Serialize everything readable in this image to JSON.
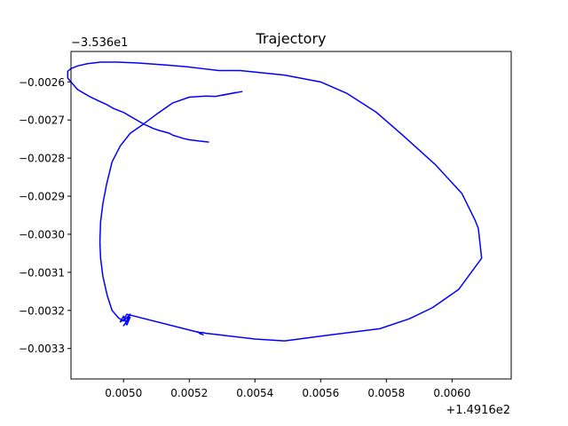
{
  "chart_data": {
    "type": "line",
    "title": "Trajectory",
    "xlabel": "",
    "ylabel": "",
    "x_offset_label": "+1.4916e2",
    "y_offset_label": "−3.536e1",
    "xlim": [
      0.00484,
      0.00618
    ],
    "ylim": [
      -0.00338,
      -0.00252
    ],
    "x_ticks": [
      0.005,
      0.0052,
      0.0054,
      0.0056,
      0.0058,
      0.006
    ],
    "x_tick_labels": [
      "0.0050",
      "0.0052",
      "0.0054",
      "0.0056",
      "0.0058",
      "0.0060"
    ],
    "y_ticks": [
      -0.0026,
      -0.0027,
      -0.0028,
      -0.0029,
      -0.003,
      -0.0031,
      -0.0032,
      -0.0033
    ],
    "y_tick_labels": [
      "−0.0026",
      "−0.0027",
      "−0.0028",
      "−0.0029",
      "−0.0030",
      "−0.0031",
      "−0.0032",
      "−0.0033"
    ],
    "grid": false,
    "legend": false,
    "series": [
      {
        "color": "#0000ff",
        "x": [
          0.005362,
          0.0053,
          0.00534,
          0.00528,
          0.00525,
          0.0052,
          0.00515,
          0.0051,
          0.00506,
          0.00502,
          0.00499,
          0.004965,
          0.004948,
          0.004937,
          0.00493,
          0.004928,
          0.00493,
          0.004937,
          0.00495,
          0.004965,
          0.004985,
          0.005,
          0.00502,
          0.005005,
          0.005,
          0.00502,
          0.00501,
          0.005,
          0.00499,
          0.005,
          0.00501,
          0.00523,
          0.005235,
          0.005225,
          0.005242,
          0.00523,
          0.00524,
          0.00525,
          0.0053,
          0.0054,
          0.00549,
          0.00558,
          0.00565,
          0.00578,
          0.00587,
          0.00594,
          0.00602,
          0.00609,
          0.00608,
          0.00607,
          0.00603,
          0.00595,
          0.00585,
          0.00577,
          0.00568,
          0.0056,
          0.00549,
          0.005355,
          0.00529,
          0.00524,
          0.00519,
          0.00512,
          0.00504,
          0.00498,
          0.00493,
          0.00489,
          0.00486,
          0.00484,
          0.00483,
          0.00483,
          0.00483,
          0.00484,
          0.00485,
          0.00486,
          0.00488,
          0.0049,
          0.004925,
          0.00495,
          0.00496,
          0.00497,
          0.005,
          0.00502,
          0.00503,
          0.00504,
          0.00506,
          0.00508,
          0.00509,
          0.0051,
          0.00511,
          0.00512,
          0.00514,
          0.00515,
          0.00517,
          0.00518,
          0.0052,
          0.00523,
          0.00526
        ],
        "y": [
          -0.002625,
          -0.002635,
          -0.002628,
          -0.002638,
          -0.002637,
          -0.00264,
          -0.002655,
          -0.002685,
          -0.002711,
          -0.002735,
          -0.002768,
          -0.00281,
          -0.00287,
          -0.00292,
          -0.002968,
          -0.00302,
          -0.003062,
          -0.00311,
          -0.00316,
          -0.0032,
          -0.00322,
          -0.003228,
          -0.00321,
          -0.003235,
          -0.00324,
          -0.003218,
          -0.003238,
          -0.003215,
          -0.00323,
          -0.003225,
          -0.00321,
          -0.003258,
          -0.003262,
          -0.003256,
          -0.003264,
          -0.003258,
          -0.003258,
          -0.00326,
          -0.003265,
          -0.003275,
          -0.00328,
          -0.00327,
          -0.003262,
          -0.003248,
          -0.003222,
          -0.003193,
          -0.003145,
          -0.003063,
          -0.002985,
          -0.002963,
          -0.002893,
          -0.002818,
          -0.00274,
          -0.00268,
          -0.00263,
          -0.0026,
          -0.002582,
          -0.00257,
          -0.00257,
          -0.002565,
          -0.00256,
          -0.002555,
          -0.00255,
          -0.002548,
          -0.002548,
          -0.002552,
          -0.002558,
          -0.002565,
          -0.002572,
          -0.00258,
          -0.00259,
          -0.0026,
          -0.00261,
          -0.00262,
          -0.00263,
          -0.00264,
          -0.00265,
          -0.00266,
          -0.002665,
          -0.00267,
          -0.00268,
          -0.00269,
          -0.002695,
          -0.0027,
          -0.00271,
          -0.002718,
          -0.002722,
          -0.002725,
          -0.002728,
          -0.00273,
          -0.002735,
          -0.00274,
          -0.002745,
          -0.002748,
          -0.002752,
          -0.002755,
          -0.002758
        ]
      }
    ]
  }
}
